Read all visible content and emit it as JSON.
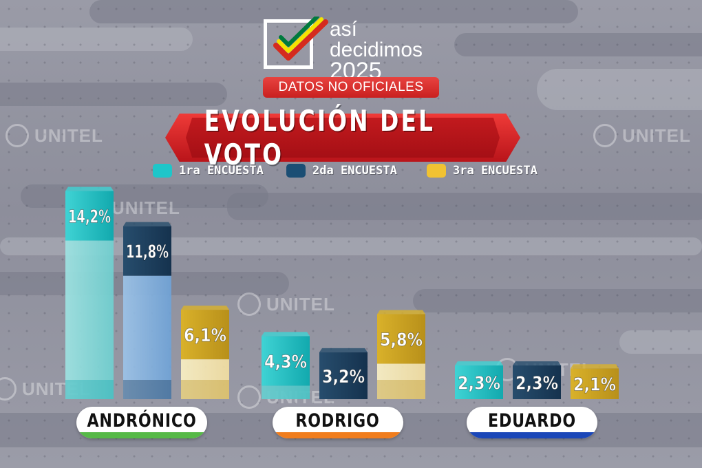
{
  "branding": {
    "logo_line1": "así",
    "logo_line2": "decidimos",
    "logo_line3": "2025",
    "badge": "DATOS NO OFICIALES",
    "watermark": "UNITEL"
  },
  "colors": {
    "encuesta1": "#1ec6c9",
    "encuesta2": "#1b4e74",
    "encuesta3": "#f1c232",
    "andronico": "#56b947",
    "rodrigo": "#f07d1d",
    "eduardo": "#1b47b8",
    "banner": "#c81d22"
  },
  "chart_data": {
    "type": "bar",
    "title": "EVOLUCIÓN DEL VOTO",
    "categories": [
      "ANDRÓNICO",
      "RODRIGO",
      "EDUARDO"
    ],
    "series": [
      {
        "name": "1ra ENCUESTA",
        "values": [
          14.2,
          4.3,
          2.3
        ],
        "labels": [
          "14,2%",
          "4,3%",
          "2,3%"
        ]
      },
      {
        "name": "2da ENCUESTA",
        "values": [
          11.8,
          3.2,
          2.3
        ],
        "labels": [
          "11,8%",
          "3,2%",
          "2,3%"
        ]
      },
      {
        "name": "3ra ENCUESTA",
        "values": [
          6.1,
          5.8,
          2.1
        ],
        "labels": [
          "6,1%",
          "5,8%",
          "2,1%"
        ]
      }
    ],
    "legend": "top-center",
    "xlabel": "",
    "ylabel": ""
  }
}
